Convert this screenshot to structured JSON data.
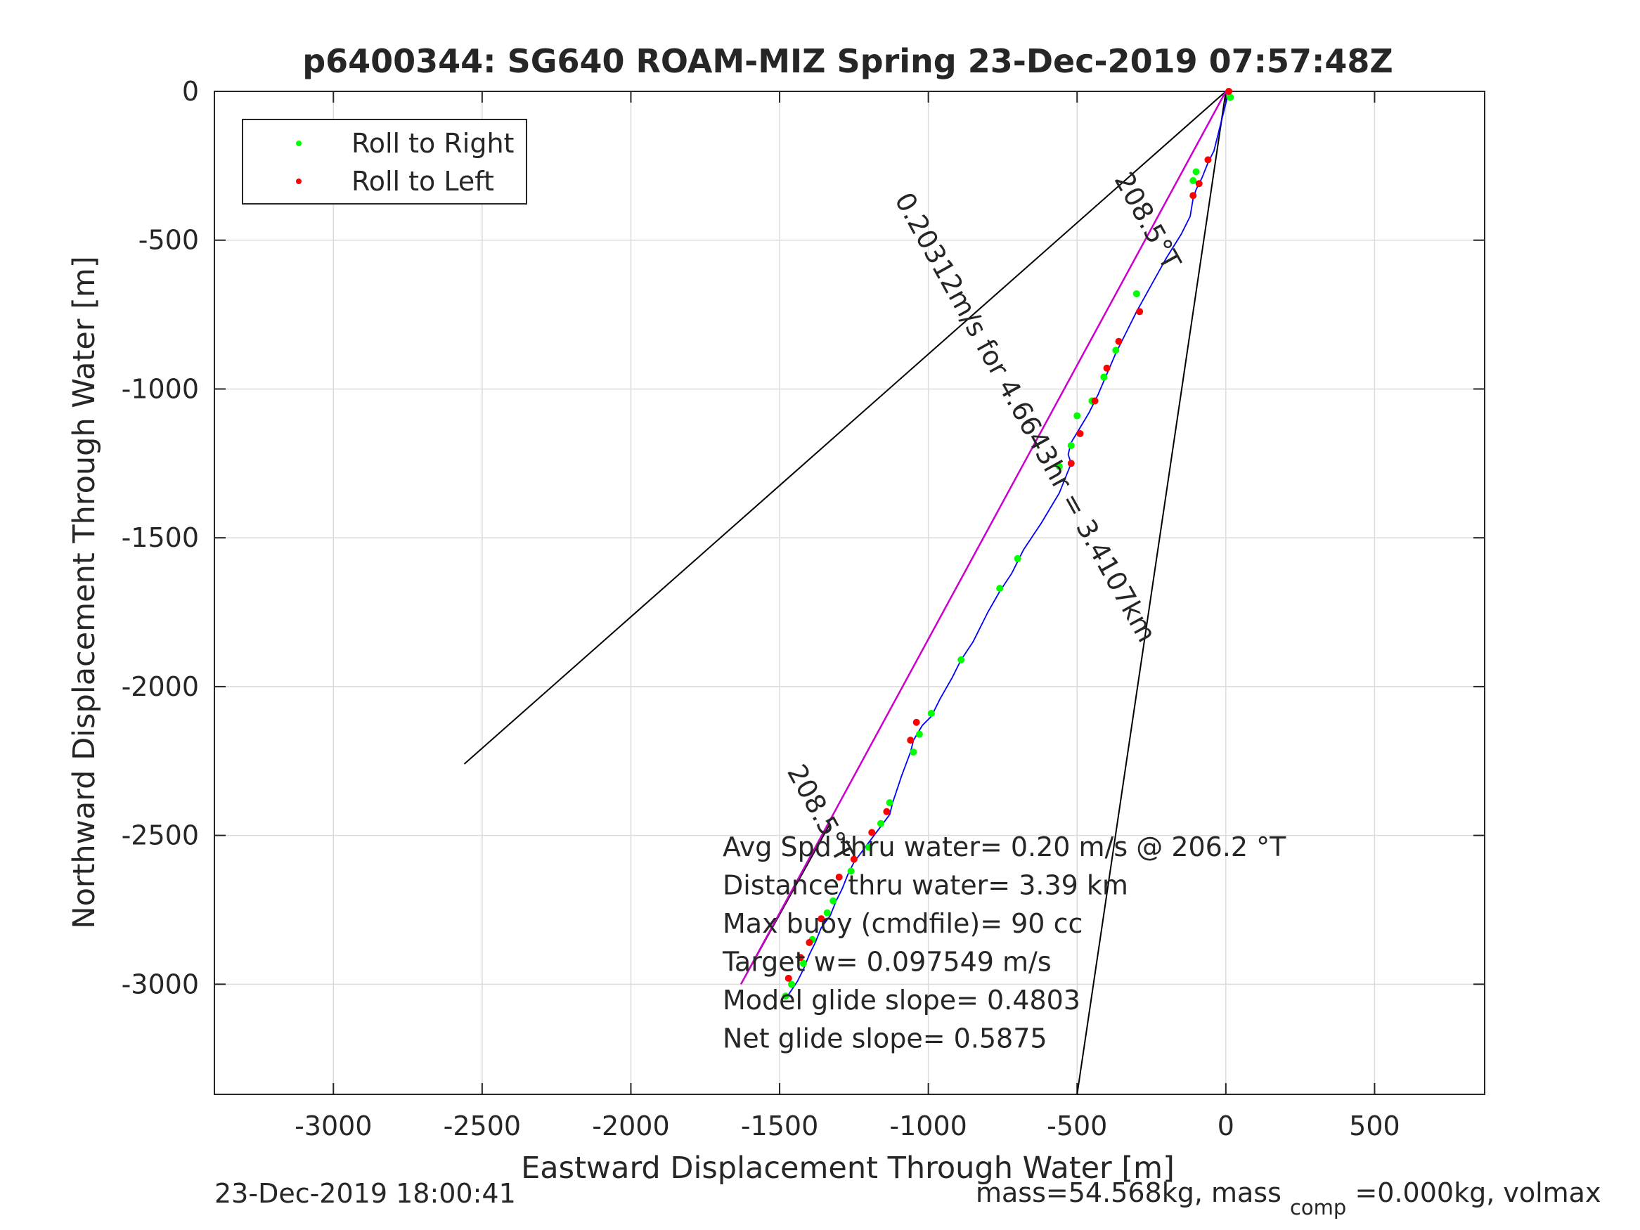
{
  "chart_data": {
    "type": "line",
    "title": "p6400344: SG640 ROAM-MIZ Spring 23-Dec-2019 07:57:48Z",
    "xlabel": "Eastward Displacement Through Water [m]",
    "ylabel": "Northward Displacement Through Water [m]",
    "xlim": [
      -3400,
      870
    ],
    "ylim": [
      -3370,
      0
    ],
    "xticks": [
      -3000,
      -2500,
      -2000,
      -1500,
      -1000,
      -500,
      0,
      500
    ],
    "yticks": [
      0,
      -500,
      -1000,
      -1500,
      -2000,
      -2500,
      -3000
    ],
    "xtick_labels": [
      "-3000",
      "-2500",
      "-2000",
      "-1500",
      "-1000",
      "-500",
      "0",
      "500"
    ],
    "ytick_labels": [
      "0",
      "-500",
      "-1000",
      "-1500",
      "-2000",
      "-2500",
      "-3000"
    ],
    "grid": true,
    "legend": {
      "placement": "top-left",
      "entries": [
        {
          "label": "Roll to Right",
          "color": "#00ff00"
        },
        {
          "label": "Roll to Left",
          "color": "#ff0000"
        }
      ]
    },
    "series": [
      {
        "name": "track",
        "color": "#0000ff",
        "x": [
          10,
          -20,
          -40,
          -60,
          -80,
          -100,
          -110,
          -120,
          -150,
          -200,
          -250,
          -300,
          -340,
          -370,
          -400,
          -430,
          -460,
          -490,
          -520,
          -530,
          -520,
          -560,
          -620,
          -680,
          -700,
          -720,
          -760,
          -800,
          -850,
          -890,
          -920,
          -960,
          -990,
          -1020,
          -1050,
          -1060,
          -1090,
          -1120,
          -1130,
          -1160,
          -1190,
          -1220,
          -1250,
          -1270,
          -1290,
          -1310,
          -1330,
          -1360,
          -1380,
          -1400,
          -1420,
          -1440,
          -1460,
          -1480
        ],
        "y": [
          0,
          -120,
          -200,
          -240,
          -290,
          -330,
          -360,
          -420,
          -480,
          -560,
          -650,
          -740,
          -820,
          -880,
          -950,
          -1020,
          -1080,
          -1130,
          -1180,
          -1220,
          -1250,
          -1350,
          -1450,
          -1540,
          -1580,
          -1620,
          -1680,
          -1750,
          -1850,
          -1910,
          -1970,
          -2040,
          -2100,
          -2130,
          -2180,
          -2220,
          -2300,
          -2390,
          -2430,
          -2470,
          -2510,
          -2550,
          -2590,
          -2630,
          -2680,
          -2720,
          -2770,
          -2810,
          -2860,
          -2900,
          -2950,
          -2990,
          -3020,
          -3050
        ]
      }
    ],
    "roll_right": {
      "x": [
        15,
        -100,
        -110,
        -300,
        -370,
        -410,
        -450,
        -500,
        -520,
        -560,
        -700,
        -760,
        -890,
        -990,
        -1030,
        -1050,
        -1130,
        -1160,
        -1200,
        -1260,
        -1320,
        -1340,
        -1390,
        -1420,
        -1460,
        -1480
      ],
      "y": [
        -20,
        -270,
        -300,
        -680,
        -870,
        -960,
        -1040,
        -1090,
        -1190,
        -1260,
        -1570,
        -1670,
        -1910,
        -2090,
        -2160,
        -2220,
        -2390,
        -2460,
        -2540,
        -2620,
        -2720,
        -2760,
        -2850,
        -2930,
        -3000,
        -3040
      ]
    },
    "roll_left": {
      "x": [
        10,
        -60,
        -90,
        -110,
        -290,
        -360,
        -400,
        -440,
        -490,
        -520,
        -1040,
        -1060,
        -1140,
        -1190,
        -1250,
        -1300,
        -1360,
        -1400,
        -1430,
        -1470
      ],
      "y": [
        0,
        -230,
        -310,
        -350,
        -740,
        -840,
        -930,
        -1040,
        -1150,
        -1250,
        -2120,
        -2180,
        -2420,
        -2490,
        -2580,
        -2640,
        -2780,
        -2860,
        -2910,
        -2980
      ]
    },
    "magenta_line": {
      "color": "#cc00cc",
      "x": [
        0,
        -1630
      ],
      "y": [
        0,
        -3000
      ]
    },
    "black_lines": [
      {
        "x": [
          0,
          -2560
        ],
        "y": [
          0,
          -2260
        ]
      },
      {
        "x": [
          0,
          -500
        ],
        "y": [
          0,
          -3370
        ]
      },
      {
        "x": [
          -1630,
          -1330
        ],
        "y": [
          -3000,
          -2460
        ]
      }
    ],
    "rotated_labels": [
      {
        "text": "208.5°T",
        "x": -290,
        "y": -450,
        "angle": 61
      },
      {
        "text": "0.20312m/s for 4.6643hr = 3.4107km",
        "x": -700,
        "y": -1110,
        "angle": 61
      },
      {
        "text": "208.5°T",
        "x": -1390,
        "y": -2440,
        "angle": 61
      }
    ],
    "annotations": [
      "Avg Spd thru water=  0.20 m/s @ 206.2 °T",
      "Distance thru water=  3.39 km",
      "Max buoy (cmdfile)= 90 cc",
      "Target w= 0.097549 m/s",
      "Model glide slope= 0.4803",
      "Net glide slope= 0.5875"
    ]
  },
  "footer": {
    "timestamp": "23-Dec-2019 18:00:41",
    "mass_prefix": "mass=54.568kg, mass",
    "mass_sub": "comp",
    "mass_suffix": "=0.000kg, volmax"
  }
}
